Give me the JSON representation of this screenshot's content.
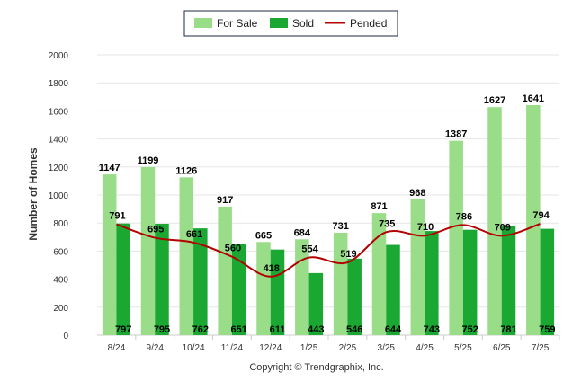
{
  "chart_data": {
    "type": "bar",
    "ylabel": "Number of Homes",
    "xlabel": "",
    "ylim": [
      0,
      2000
    ],
    "yticks": [
      0,
      200,
      400,
      600,
      800,
      1000,
      1200,
      1400,
      1600,
      1800,
      2000
    ],
    "grid": true,
    "legend_position": "top-center",
    "categories": [
      "8/24",
      "9/24",
      "10/24",
      "11/24",
      "12/24",
      "1/25",
      "2/25",
      "3/25",
      "4/25",
      "5/25",
      "6/25",
      "7/25"
    ],
    "series": [
      {
        "name": "For Sale",
        "kind": "bar",
        "color": "#99dd88",
        "values": [
          1147,
          1199,
          1126,
          917,
          665,
          684,
          731,
          871,
          968,
          1387,
          1627,
          1641
        ]
      },
      {
        "name": "Sold",
        "kind": "bar",
        "color": "#1aa832",
        "values": [
          797,
          795,
          762,
          651,
          611,
          443,
          546,
          644,
          743,
          752,
          781,
          759
        ]
      },
      {
        "name": "Pended",
        "kind": "line",
        "color": "#b30000",
        "values": [
          791,
          695,
          661,
          560,
          418,
          554,
          519,
          735,
          710,
          786,
          709,
          794
        ]
      }
    ]
  },
  "footer": {
    "copyright": "Copyright © Trendgraphix, Inc."
  }
}
